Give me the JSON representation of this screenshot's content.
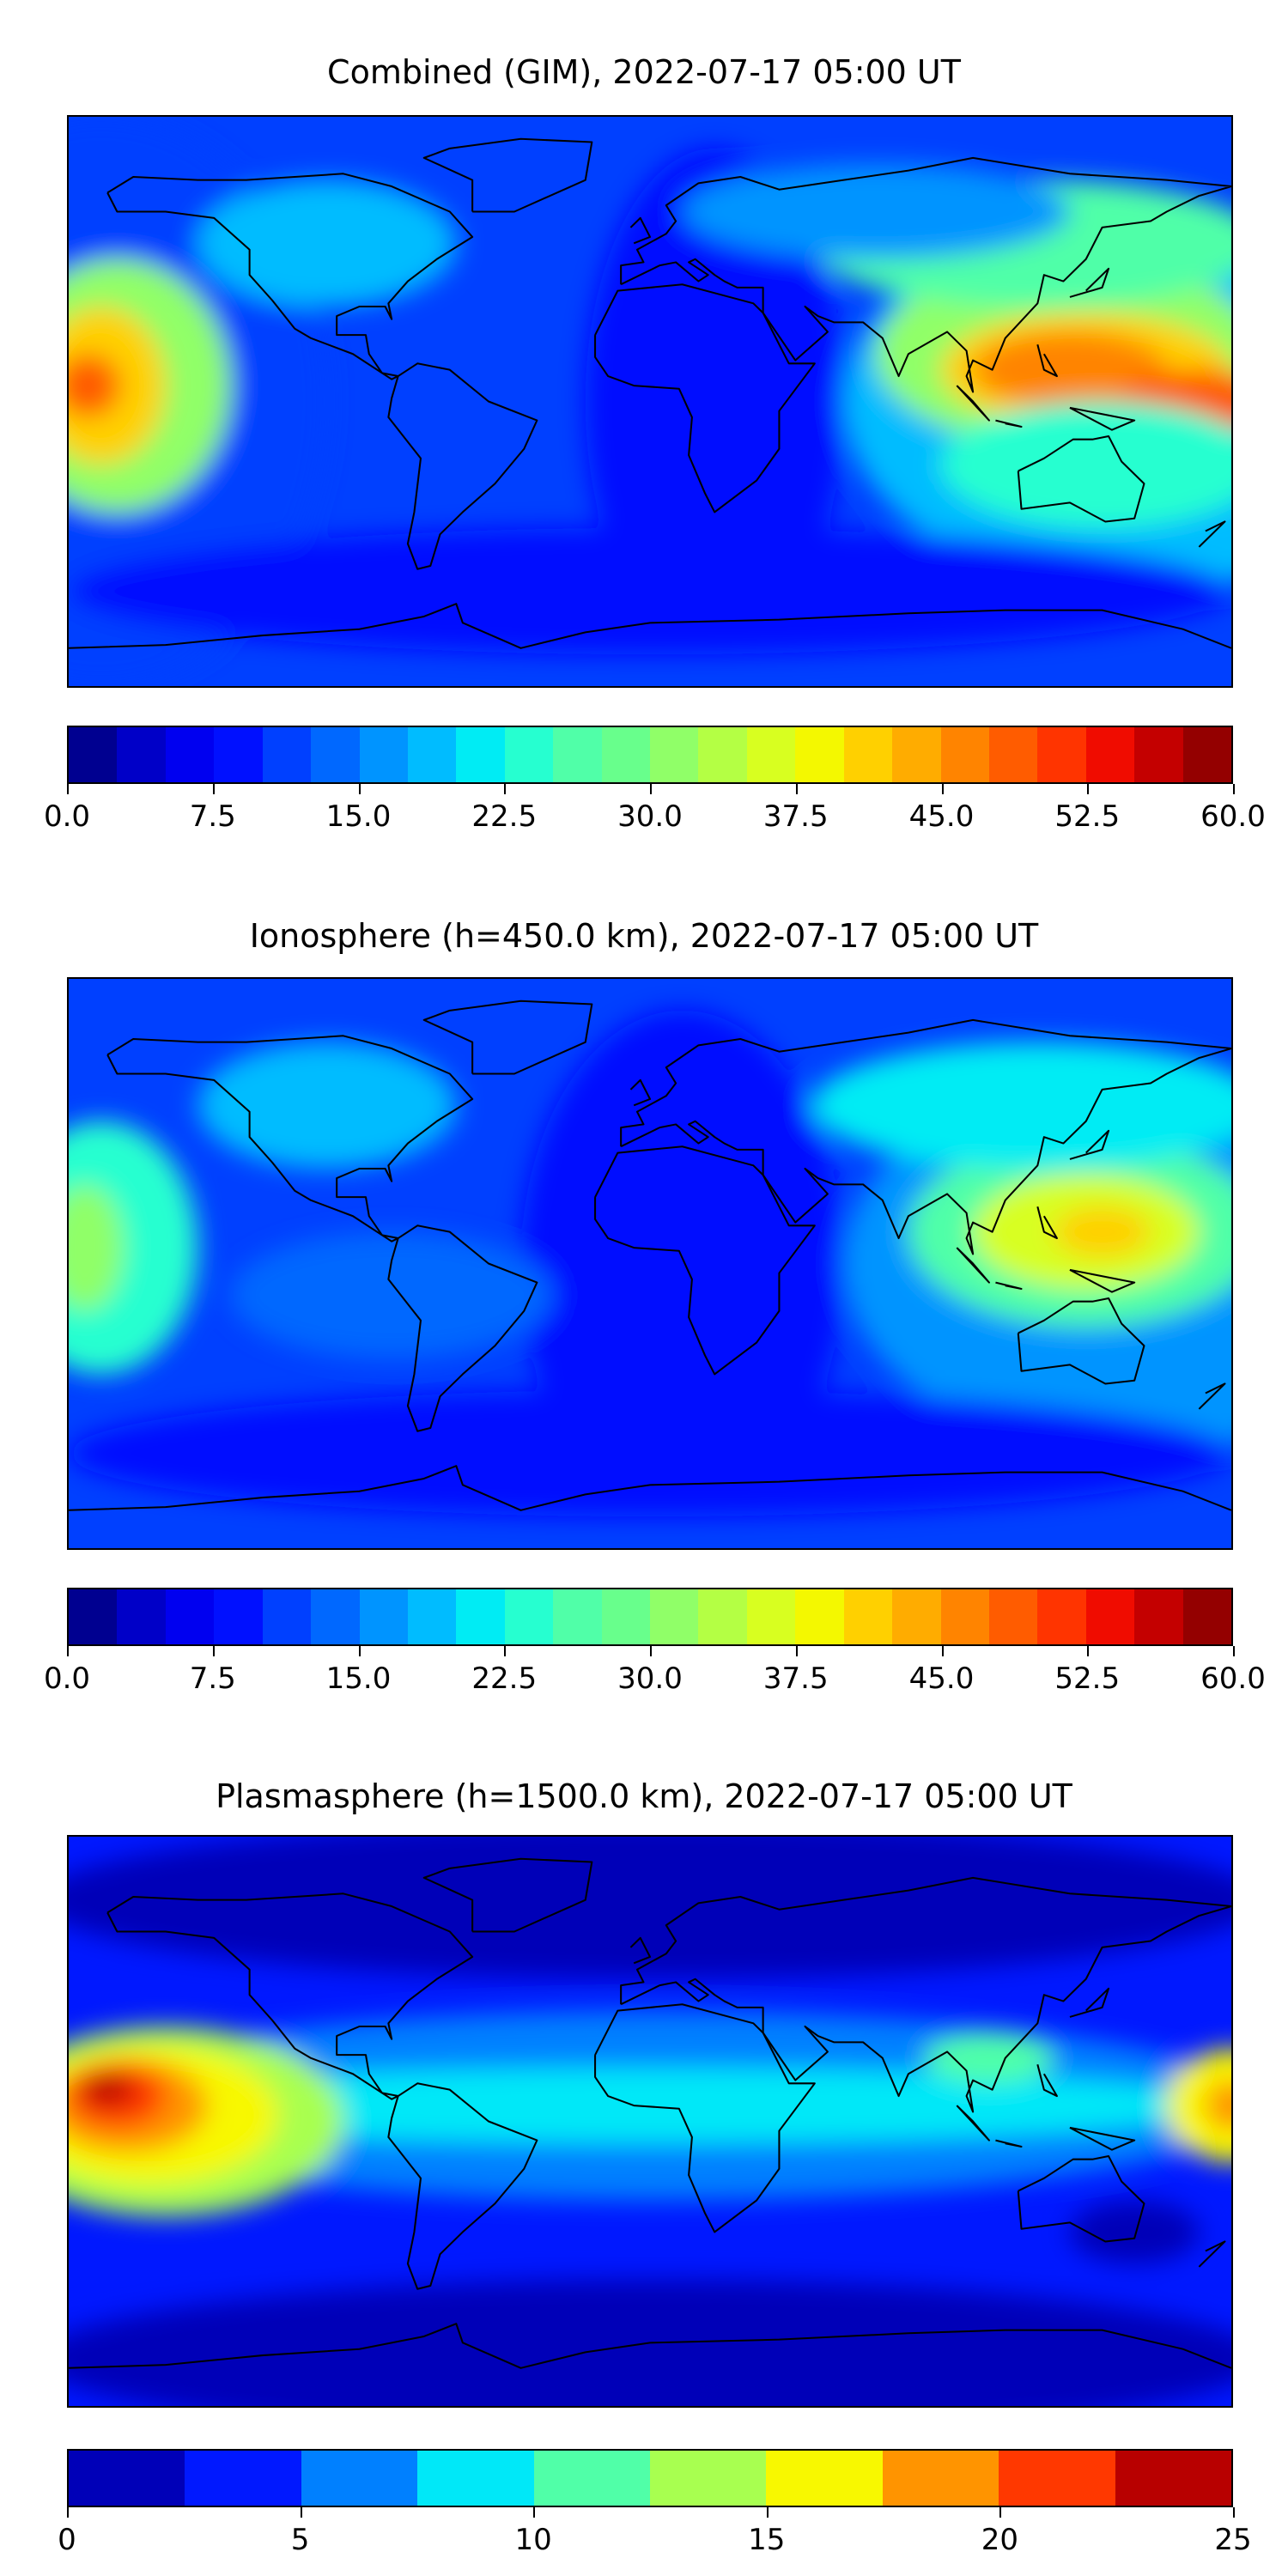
{
  "chart_data": [
    {
      "type": "heatmap",
      "title": "Combined (GIM), 2022-07-17 05:00 UT",
      "projection": "equirectangular",
      "lon_range": [
        -180,
        180
      ],
      "lat_range": [
        -90,
        90
      ],
      "colorbar": {
        "range": [
          0,
          60
        ],
        "step": 2.5,
        "ticks": [
          "0.0",
          "7.5",
          "15.0",
          "22.5",
          "30.0",
          "37.5",
          "45.0",
          "52.5",
          "60.0"
        ]
      },
      "features": [
        {
          "region": "SE Asia / W Pacific",
          "level": "45-50"
        },
        {
          "region": "Central Pacific (near date line)",
          "level": "45-52.5"
        },
        {
          "region": "Atlantic / S Atlantic",
          "level": "5-10"
        }
      ]
    },
    {
      "type": "heatmap",
      "title": "Ionosphere  (h=450.0 km), 2022-07-17 05:00 UT",
      "projection": "equirectangular",
      "lon_range": [
        -180,
        180
      ],
      "lat_range": [
        -90,
        90
      ],
      "colorbar": {
        "range": [
          0,
          60
        ],
        "step": 2.5,
        "ticks": [
          "0.0",
          "7.5",
          "15.0",
          "22.5",
          "30.0",
          "37.5",
          "45.0",
          "52.5",
          "60.0"
        ]
      },
      "features": [
        {
          "region": "SE Asia / W Pacific",
          "level": "37.5-42.5"
        },
        {
          "region": "Atlantic",
          "level": "2.5-7.5"
        }
      ]
    },
    {
      "type": "heatmap",
      "title": "Plasmasphere (h=1500.0 km), 2022-07-17 05:00 UT",
      "projection": "equirectangular",
      "lon_range": [
        -180,
        180
      ],
      "lat_range": [
        -90,
        90
      ],
      "colorbar": {
        "range": [
          0,
          25
        ],
        "step": 2.5,
        "ticks": [
          "0",
          "5",
          "10",
          "15",
          "20",
          "25"
        ]
      },
      "features": [
        {
          "region": "Central Pacific (near date line)",
          "level": "22.5-25"
        },
        {
          "region": "Equatorial belt",
          "level": "7.5-12.5"
        },
        {
          "region": "High latitudes",
          "level": "0-2.5"
        }
      ]
    }
  ],
  "colors": {
    "levels24": [
      "#000090",
      "#0000c8",
      "#0000f0",
      "#0010ff",
      "#0040ff",
      "#0068ff",
      "#0094ff",
      "#00bcff",
      "#00ecf4",
      "#26ffd0",
      "#50ffa8",
      "#68ff8c",
      "#90ff68",
      "#b4ff44",
      "#d8ff20",
      "#f4f800",
      "#ffd000",
      "#ffac00",
      "#ff8400",
      "#ff5c00",
      "#ff3400",
      "#f00c00",
      "#c40000",
      "#940000"
    ],
    "levels10": [
      "#0000b8",
      "#0018ff",
      "#0080ff",
      "#00e8f8",
      "#50ffa8",
      "#a8ff50",
      "#f8f800",
      "#ff9400",
      "#ff3800",
      "#b80000"
    ]
  }
}
